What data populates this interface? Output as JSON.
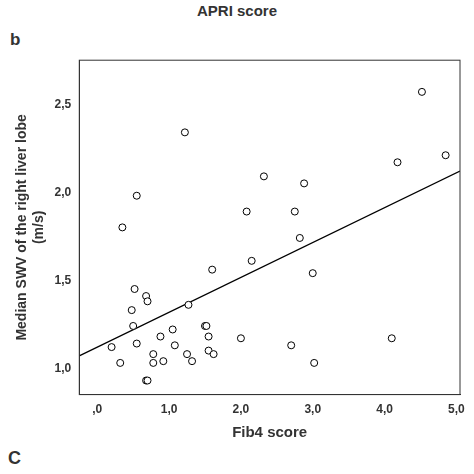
{
  "chart_data": {
    "type": "scatter",
    "texts": {
      "top": "APRI score",
      "panel_label": "b",
      "bottom_label": "C"
    },
    "x_label": "Fib4 score",
    "y_label": [
      "Median SWV of the right liver lobe",
      "(m/s)"
    ],
    "x": [
      0.2,
      0.32,
      0.35,
      0.48,
      0.5,
      0.52,
      0.55,
      0.55,
      0.68,
      0.7,
      0.68,
      0.7,
      0.78,
      0.78,
      0.88,
      0.92,
      1.05,
      1.08,
      1.22,
      1.25,
      1.27,
      1.32,
      1.5,
      1.52,
      1.55,
      1.55,
      1.6,
      1.62,
      2.0,
      2.08,
      2.15,
      2.32,
      2.7,
      2.75,
      2.82,
      2.88,
      3.0,
      3.02,
      4.1,
      4.18,
      4.52,
      4.85
    ],
    "values": [
      1.12,
      1.03,
      1.8,
      1.33,
      1.24,
      1.45,
      1.14,
      1.98,
      1.41,
      1.38,
      0.93,
      0.93,
      1.08,
      1.03,
      1.18,
      1.04,
      1.22,
      1.13,
      2.34,
      1.08,
      1.36,
      1.04,
      1.24,
      1.24,
      1.18,
      1.1,
      1.56,
      1.08,
      1.17,
      1.89,
      1.61,
      2.09,
      1.13,
      1.89,
      1.74,
      2.05,
      1.54,
      1.03,
      1.17,
      2.17,
      2.57,
      2.21
    ],
    "regression_line": {
      "x": [
        -0.25,
        5.05
      ],
      "y": [
        1.07,
        2.12
      ]
    },
    "color": "#000000",
    "marker": "circle",
    "xlim": [
      -0.25,
      5.05
    ],
    "xticks": [
      {
        "value": 0,
        "label": ",0"
      },
      {
        "value": 1,
        "label": "1,0"
      },
      {
        "value": 2,
        "label": "2,0"
      },
      {
        "value": 3,
        "label": "3,0"
      },
      {
        "value": 4,
        "label": "4,0"
      },
      {
        "value": 5,
        "label": "5,0"
      }
    ],
    "ylim": [
      0.85,
      2.75
    ],
    "yticks": [
      {
        "value": 1,
        "label": "1,0"
      },
      {
        "value": 1.5,
        "label": "1,5"
      },
      {
        "value": 2,
        "label": "2,0"
      },
      {
        "value": 2.5,
        "label": "2,5"
      }
    ],
    "grid": false
  }
}
